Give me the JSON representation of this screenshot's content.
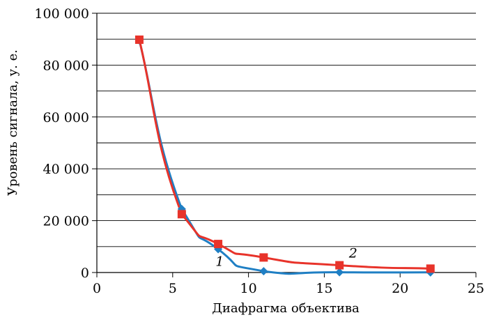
{
  "chart_data": {
    "type": "line",
    "title": "",
    "xlabel": "Диафрагма объектива",
    "ylabel": "Уровень сигнала, у. е.",
    "xlim": [
      0,
      25
    ],
    "ylim": [
      0,
      100000
    ],
    "x_ticks": [
      0,
      5,
      10,
      15,
      20,
      25
    ],
    "x_tick_labels": [
      "0",
      "5",
      "10",
      "15",
      "20",
      "25"
    ],
    "y_ticks": [
      0,
      20000,
      40000,
      60000,
      80000,
      100000
    ],
    "y_tick_labels": [
      "0",
      "20 000",
      "40 000",
      "60 000",
      "80 000",
      "100 000"
    ],
    "y_gridlines": [
      10000,
      20000,
      30000,
      40000,
      50000,
      60000,
      70000,
      80000,
      90000,
      100000
    ],
    "grid": "horizontal",
    "series": [
      {
        "name": "1",
        "color": "#1f7fc4",
        "marker": "diamond",
        "x": [
          2.8,
          5.6,
          8,
          11,
          16,
          22
        ],
        "y": [
          89500,
          24500,
          9000,
          500,
          100,
          50
        ]
      },
      {
        "name": "2",
        "color": "#e8332a",
        "marker": "square",
        "x": [
          2.8,
          5.6,
          8,
          11,
          16,
          22
        ],
        "y": [
          89800,
          22500,
          11000,
          5800,
          2800,
          1500
        ]
      }
    ],
    "series_label_positions": [
      {
        "text": "1",
        "x": 8.1,
        "y": 2500
      },
      {
        "text": "2",
        "x": 16.9,
        "y": 5800
      }
    ]
  }
}
